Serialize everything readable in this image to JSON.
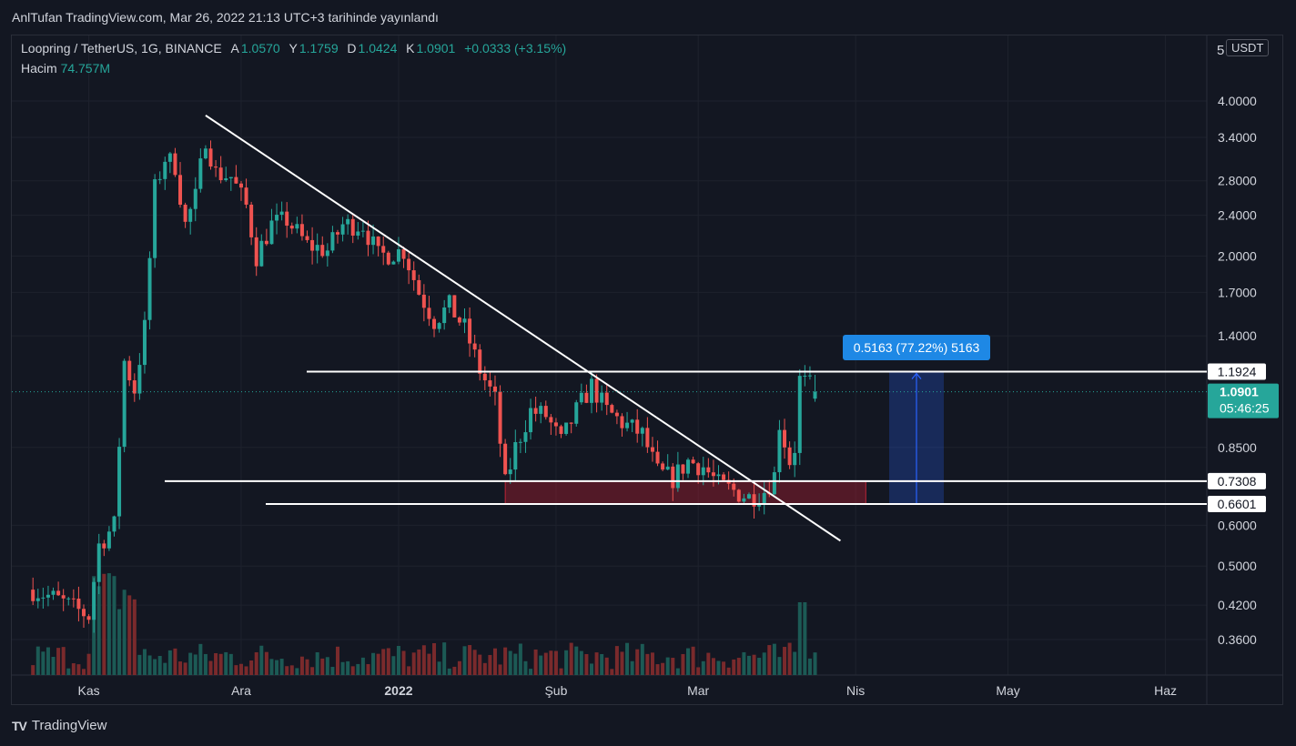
{
  "header": {
    "publish_line": "AnlTufan TradingView.com, Mar 26, 2022 21:13 UTC+3 tarihinde yayınlandı"
  },
  "legend": {
    "symbol": "Loopring / TetherUS, 1G, BINANCE",
    "open_key": "A",
    "open": "1.0570",
    "high_key": "Y",
    "high": "1.1759",
    "low_key": "D",
    "low": "1.0424",
    "close_key": "K",
    "close": "1.0901",
    "change": "+0.0333 (+3.15%)",
    "volume_label": "Hacim",
    "volume_value": "74.757M"
  },
  "currency_button": "USDT",
  "axis_top_partial": "5",
  "footer": {
    "logo_text": "TV",
    "brand": "TradingView"
  },
  "colors": {
    "background": "#131722",
    "up": "#26a69a",
    "down": "#ef5350",
    "grid": "#1e222d",
    "measure": "#2962ff"
  },
  "chart_data": {
    "type": "candlestick",
    "y_scale": "log",
    "y_ticks": [
      "4.0000",
      "3.4000",
      "2.8000",
      "2.4000",
      "2.0000",
      "1.7000",
      "1.4000",
      "0.8500",
      "0.6000",
      "0.5000",
      "0.4200",
      "0.3600"
    ],
    "x_ticks": [
      "Kas",
      "Ara",
      "2022",
      "Şub",
      "Mar",
      "Nis",
      "May",
      "Haz"
    ],
    "last_price": "1.0901",
    "countdown": "05:46:25",
    "levels": [
      {
        "label": "1.1924",
        "value": 1.1924
      },
      {
        "label": "0.7308",
        "value": 0.7308
      },
      {
        "label": "0.6601",
        "value": 0.6601
      }
    ],
    "measure_label": "0.5163 (77.22%) 5163",
    "trendline": {
      "from": {
        "date": "2021-11-24",
        "price": 3.75
      },
      "to": {
        "date": "2022-03-29",
        "price": 0.56
      }
    },
    "zone": {
      "from_date": "2022-01-22",
      "to_date": "2022-04-03",
      "low": 0.6601,
      "high": 0.7308
    },
    "candles_keypoints": [
      {
        "date": "2021-10-21",
        "price": 0.45
      },
      {
        "date": "2021-10-26",
        "price": 0.43
      },
      {
        "date": "2021-11-01",
        "price": 0.4
      },
      {
        "date": "2021-11-03",
        "price": 0.55
      },
      {
        "date": "2021-11-06",
        "price": 0.6
      },
      {
        "date": "2021-11-08",
        "price": 1.25
      },
      {
        "date": "2021-11-10",
        "price": 1.1
      },
      {
        "date": "2021-11-12",
        "price": 1.45
      },
      {
        "date": "2021-11-14",
        "price": 2.7
      },
      {
        "date": "2021-11-16",
        "price": 3.1
      },
      {
        "date": "2021-11-18",
        "price": 3.0
      },
      {
        "date": "2021-11-20",
        "price": 2.3
      },
      {
        "date": "2021-11-22",
        "price": 2.6
      },
      {
        "date": "2021-11-24",
        "price": 3.4
      },
      {
        "date": "2021-11-26",
        "price": 2.9
      },
      {
        "date": "2021-11-29",
        "price": 2.85
      },
      {
        "date": "2021-12-02",
        "price": 2.5
      },
      {
        "date": "2021-12-04",
        "price": 2.0
      },
      {
        "date": "2021-12-07",
        "price": 2.3
      },
      {
        "date": "2021-12-10",
        "price": 2.35
      },
      {
        "date": "2021-12-14",
        "price": 2.1
      },
      {
        "date": "2021-12-18",
        "price": 2.05
      },
      {
        "date": "2021-12-21",
        "price": 2.3
      },
      {
        "date": "2021-12-25",
        "price": 2.3
      },
      {
        "date": "2021-12-28",
        "price": 2.0
      },
      {
        "date": "2022-01-02",
        "price": 2.05
      },
      {
        "date": "2022-01-05",
        "price": 1.7
      },
      {
        "date": "2022-01-08",
        "price": 1.5
      },
      {
        "date": "2022-01-11",
        "price": 1.6
      },
      {
        "date": "2022-01-14",
        "price": 1.45
      },
      {
        "date": "2022-01-17",
        "price": 1.2
      },
      {
        "date": "2022-01-20",
        "price": 1.05
      },
      {
        "date": "2022-01-22",
        "price": 0.72
      },
      {
        "date": "2022-01-24",
        "price": 0.85
      },
      {
        "date": "2022-01-27",
        "price": 1.0
      },
      {
        "date": "2022-01-30",
        "price": 0.98
      },
      {
        "date": "2022-02-02",
        "price": 0.87
      },
      {
        "date": "2022-02-05",
        "price": 1.0
      },
      {
        "date": "2022-02-08",
        "price": 1.12
      },
      {
        "date": "2022-02-11",
        "price": 1.0
      },
      {
        "date": "2022-02-14",
        "price": 0.95
      },
      {
        "date": "2022-02-18",
        "price": 0.9
      },
      {
        "date": "2022-02-21",
        "price": 0.76
      },
      {
        "date": "2022-02-24",
        "price": 0.74
      },
      {
        "date": "2022-02-27",
        "price": 0.8
      },
      {
        "date": "2022-03-02",
        "price": 0.78
      },
      {
        "date": "2022-03-05",
        "price": 0.72
      },
      {
        "date": "2022-03-08",
        "price": 0.7
      },
      {
        "date": "2022-03-11",
        "price": 0.68
      },
      {
        "date": "2022-03-14",
        "price": 0.7
      },
      {
        "date": "2022-03-16",
        "price": 0.75
      },
      {
        "date": "2022-03-17",
        "price": 0.95
      },
      {
        "date": "2022-03-19",
        "price": 0.8
      },
      {
        "date": "2022-03-20",
        "price": 0.85
      },
      {
        "date": "2022-03-21",
        "price": 1.15
      },
      {
        "date": "2022-03-23",
        "price": 1.12
      },
      {
        "date": "2022-03-24",
        "price": 1.09
      }
    ]
  }
}
